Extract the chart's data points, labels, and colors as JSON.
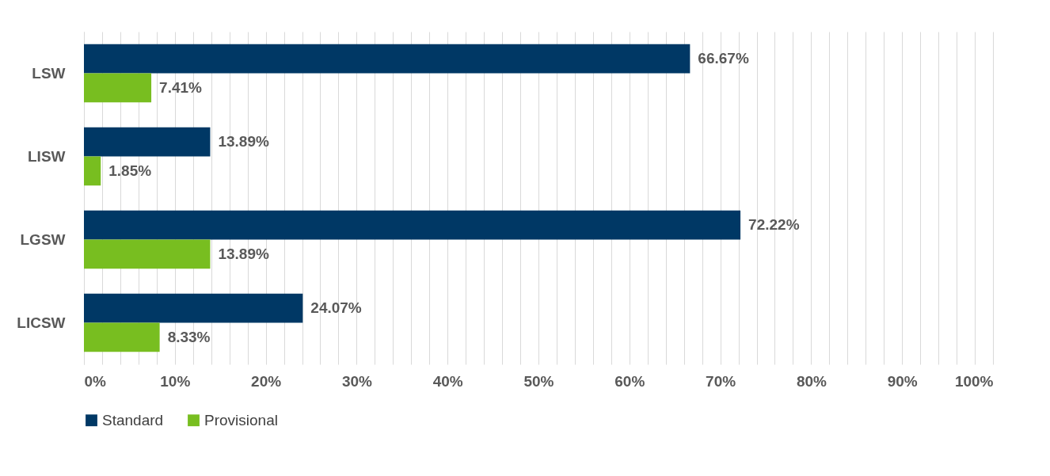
{
  "chart_data": {
    "type": "bar",
    "orientation": "horizontal",
    "categories": [
      "LSW",
      "LISW",
      "LGSW",
      "LICSW"
    ],
    "series": [
      {
        "name": "Standard",
        "color": "#003865",
        "values": [
          66.67,
          13.89,
          72.22,
          24.07
        ],
        "value_labels": [
          "66.67%",
          "13.89%",
          "72.22%",
          "24.07%"
        ]
      },
      {
        "name": "Provisional",
        "color": "#78be20",
        "values": [
          7.41,
          1.85,
          13.89,
          8.33
        ],
        "value_labels": [
          "7.41%",
          "1.85%",
          "13.89%",
          "8.33%"
        ]
      }
    ],
    "xlim": [
      0,
      100
    ],
    "xticks": [
      {
        "value": 0,
        "label": "0%"
      },
      {
        "value": 2,
        "label": null
      },
      {
        "value": 4,
        "label": null
      },
      {
        "value": 6,
        "label": null
      },
      {
        "value": 8,
        "label": null
      },
      {
        "value": 10,
        "label": "10%"
      },
      {
        "value": 12,
        "label": null
      },
      {
        "value": 14,
        "label": null
      },
      {
        "value": 16,
        "label": null
      },
      {
        "value": 18,
        "label": null
      },
      {
        "value": 20,
        "label": "20%"
      },
      {
        "value": 22,
        "label": null
      },
      {
        "value": 24,
        "label": null
      },
      {
        "value": 26,
        "label": null
      },
      {
        "value": 28,
        "label": null
      },
      {
        "value": 30,
        "label": "30%"
      },
      {
        "value": 32,
        "label": null
      },
      {
        "value": 34,
        "label": null
      },
      {
        "value": 36,
        "label": null
      },
      {
        "value": 38,
        "label": null
      },
      {
        "value": 40,
        "label": "40%"
      },
      {
        "value": 42,
        "label": null
      },
      {
        "value": 44,
        "label": null
      },
      {
        "value": 46,
        "label": null
      },
      {
        "value": 48,
        "label": null
      },
      {
        "value": 50,
        "label": "50%"
      },
      {
        "value": 52,
        "label": null
      },
      {
        "value": 54,
        "label": null
      },
      {
        "value": 56,
        "label": null
      },
      {
        "value": 58,
        "label": null
      },
      {
        "value": 60,
        "label": "60%"
      },
      {
        "value": 62,
        "label": null
      },
      {
        "value": 64,
        "label": null
      },
      {
        "value": 66,
        "label": null
      },
      {
        "value": 68,
        "label": null
      },
      {
        "value": 70,
        "label": "70%"
      },
      {
        "value": 72,
        "label": null
      },
      {
        "value": 74,
        "label": null
      },
      {
        "value": 76,
        "label": null
      },
      {
        "value": 78,
        "label": null
      },
      {
        "value": 80,
        "label": "80%"
      },
      {
        "value": 82,
        "label": null
      },
      {
        "value": 84,
        "label": null
      },
      {
        "value": 86,
        "label": null
      },
      {
        "value": 88,
        "label": null
      },
      {
        "value": 90,
        "label": "90%"
      },
      {
        "value": 92,
        "label": null
      },
      {
        "value": 94,
        "label": null
      },
      {
        "value": 96,
        "label": null
      },
      {
        "value": 98,
        "label": null
      },
      {
        "value": 100,
        "label": "100%"
      }
    ],
    "grid": "x",
    "legend": "bottom"
  }
}
